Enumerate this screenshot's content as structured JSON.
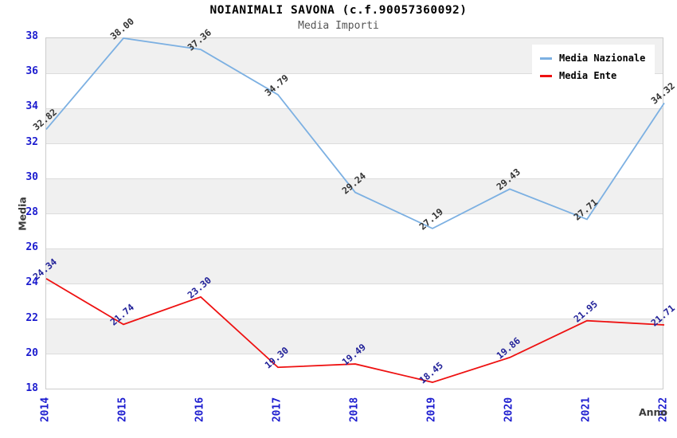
{
  "chart_data": {
    "type": "line",
    "title": "NOIANIMALI SAVONA (c.f.90057360092)",
    "subtitle": "Media Importi",
    "xlabel": "Anno",
    "ylabel": "Media",
    "x_tick_labels": [
      "2014",
      "2015",
      "2016",
      "2017",
      "2018",
      "2019",
      "2020",
      "2021",
      "2022"
    ],
    "y_tick_labels": [
      38,
      36,
      34,
      32,
      30,
      28,
      26,
      24,
      22,
      20,
      18
    ],
    "ylim": [
      18,
      38
    ],
    "grid": "alternating-horizontal-bands",
    "legend_position": "top-right",
    "value_label_decimals": 2,
    "series": [
      {
        "name": "Media Nazionale",
        "color": "#7CB0E2",
        "value_label_color": "#333333",
        "values": [
          32.82,
          38.0,
          37.36,
          34.79,
          29.24,
          27.19,
          29.43,
          27.71,
          34.32
        ]
      },
      {
        "name": "Media Ente",
        "color": "#EE1111",
        "value_label_color": "#222299",
        "values": [
          24.34,
          21.74,
          23.3,
          19.3,
          19.49,
          18.45,
          19.86,
          21.95,
          21.71
        ]
      }
    ]
  },
  "colors": {
    "axis_tick_label": "#1C1CCF",
    "axis_title_label": "#3A3A3A",
    "title_text": "#000000",
    "subtitle_text": "#555555",
    "plot_band_gray": "#F0F0F0",
    "grid_line": "#DCDCDC",
    "plot_border": "#CCCCCC",
    "legend_background": "#FFFFFF",
    "page_background": "#FFFFFF"
  }
}
